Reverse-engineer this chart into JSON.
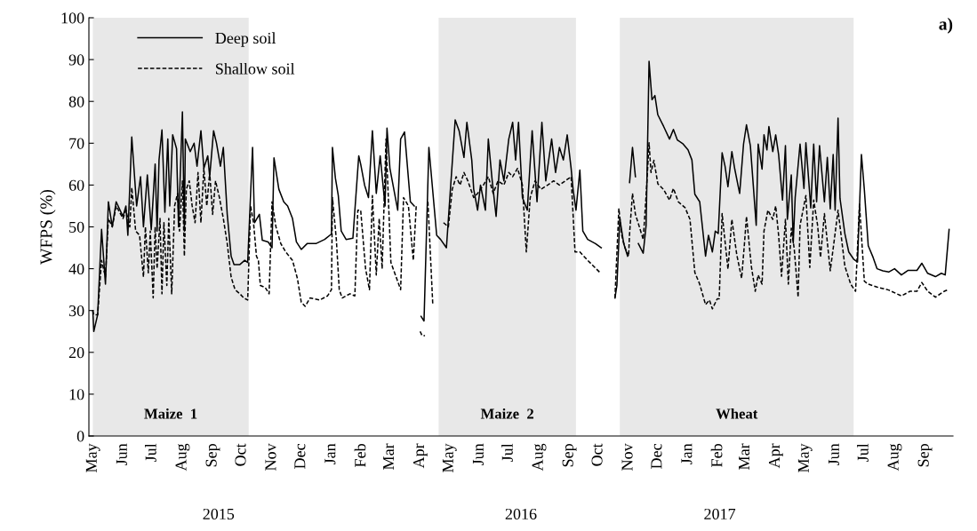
{
  "chart_data": {
    "type": "line",
    "ylabel": "WFPS (%)",
    "xlim": [
      "2015-04-27",
      "2017-09-30"
    ],
    "xticks": [
      {
        "value": "2015-05-01",
        "label": "May"
      },
      {
        "value": "2015-06-01",
        "label": "Jun"
      },
      {
        "value": "2015-07-01",
        "label": "Jul"
      },
      {
        "value": "2015-08-01",
        "label": "Aug"
      },
      {
        "value": "2015-09-01",
        "label": "Sep"
      },
      {
        "value": "2015-10-01",
        "label": "Oct"
      },
      {
        "value": "2015-11-01",
        "label": "Nov"
      },
      {
        "value": "2015-12-01",
        "label": "Dec"
      },
      {
        "value": "2016-01-01",
        "label": "Jan"
      },
      {
        "value": "2016-02-01",
        "label": "Feb"
      },
      {
        "value": "2016-03-01",
        "label": "Mar"
      },
      {
        "value": "2016-04-01",
        "label": "Apr"
      },
      {
        "value": "2016-05-01",
        "label": "May"
      },
      {
        "value": "2016-06-01",
        "label": "Jun"
      },
      {
        "value": "2016-07-01",
        "label": "Jul"
      },
      {
        "value": "2016-08-01",
        "label": "Aug"
      },
      {
        "value": "2016-09-01",
        "label": "Sep"
      },
      {
        "value": "2016-10-01",
        "label": "Oct"
      },
      {
        "value": "2016-11-01",
        "label": "Nov"
      },
      {
        "value": "2016-12-01",
        "label": "Dec"
      },
      {
        "value": "2017-01-01",
        "label": "Jan"
      },
      {
        "value": "2017-02-01",
        "label": "Feb"
      },
      {
        "value": "2017-03-01",
        "label": "Mar"
      },
      {
        "value": "2017-04-01",
        "label": "Apr"
      },
      {
        "value": "2017-05-01",
        "label": "May"
      },
      {
        "value": "2017-06-01",
        "label": "Jun"
      },
      {
        "value": "2017-07-01",
        "label": "Jul"
      },
      {
        "value": "2017-08-01",
        "label": "Aug"
      },
      {
        "value": "2017-09-01",
        "label": "Sep"
      }
    ],
    "ylim": [
      0,
      100
    ],
    "yticks": [
      0,
      10,
      20,
      30,
      40,
      50,
      60,
      70,
      80,
      90,
      100
    ],
    "grid": false,
    "legend": "top left",
    "marker": "none",
    "bands": [
      {
        "axis": "x",
        "from": "2015-05-01",
        "to": "2015-10-08",
        "label": "Maize  1",
        "color": "#e8e8e8"
      },
      {
        "axis": "x",
        "from": "2016-04-20",
        "to": "2016-09-08",
        "label": "Maize  2",
        "color": "#e8e8e8"
      },
      {
        "axis": "x",
        "from": "2016-10-23",
        "to": "2017-06-20",
        "label": "Wheat",
        "color": "#e8e8e8"
      }
    ],
    "annotations": [
      "a)",
      "2015",
      "2016",
      "2017"
    ],
    "series": [
      {
        "name": "Deep soil",
        "color": "#000000",
        "line_style": "solid",
        "x": [
          "2015-05-01",
          "2015-05-02",
          "2015-05-06",
          "2015-05-10",
          "2015-05-14",
          "2015-05-17",
          "2015-05-21",
          "2015-05-25",
          "2015-06-01",
          "2015-06-04",
          "2015-06-06",
          "2015-06-10",
          "2015-06-15",
          "2015-06-19",
          "2015-06-22",
          "2015-06-26",
          "2015-06-30",
          "2015-07-04",
          "2015-07-06",
          "2015-07-08",
          "2015-07-11",
          "2015-07-14",
          "2015-07-17",
          "2015-07-19",
          "2015-07-22",
          "2015-07-26",
          "2015-07-28",
          "2015-08-01",
          "2015-08-03",
          "2015-08-04",
          "2015-08-09",
          "2015-08-13",
          "2015-08-16",
          "2015-08-20",
          "2015-08-23",
          "2015-08-27",
          "2015-08-29",
          "2015-09-02",
          "2015-09-05",
          "2015-09-09",
          "2015-09-12",
          "2015-09-16",
          "2015-09-20",
          "2015-09-23",
          "2015-09-29",
          "2015-10-04",
          "2015-10-07",
          "2015-10-12",
          "2015-10-14",
          "2015-10-19",
          "2015-10-22",
          "2015-10-28",
          "2015-11-01",
          "2015-11-03",
          "2015-11-08",
          "2015-11-13",
          "2015-11-17",
          "2015-11-22",
          "2015-11-26",
          "2015-12-01",
          "2015-12-07",
          "2015-12-16",
          "2015-12-25",
          "2016-01-01",
          "2016-01-02",
          "2016-01-05",
          "2016-01-08",
          "2016-01-11",
          "2016-01-16",
          "2016-01-23",
          "2016-01-29",
          "2016-01-31",
          "2016-02-04",
          "2016-02-08",
          "2016-02-12",
          "2016-02-16",
          "2016-02-20",
          "2016-02-25",
          "2016-02-27",
          "2016-03-01",
          "2016-03-09",
          "2016-03-12",
          "2016-03-16",
          "2016-03-22",
          "2016-03-26",
          "2016-03-29",
          "2016-04-02",
          "2016-04-05",
          "2016-04-10",
          "2016-04-18",
          "2016-04-22",
          "2016-04-28",
          "2016-05-07",
          "2016-05-11",
          "2016-05-16",
          "2016-05-19",
          "2016-05-24",
          "2016-05-26",
          "2016-05-30",
          "2016-06-02",
          "2016-06-07",
          "2016-06-10",
          "2016-06-14",
          "2016-06-18",
          "2016-06-22",
          "2016-06-26",
          "2016-07-01",
          "2016-07-05",
          "2016-07-08",
          "2016-07-11",
          "2016-07-15",
          "2016-07-20",
          "2016-07-25",
          "2016-07-30",
          "2016-08-04",
          "2016-08-08",
          "2016-08-14",
          "2016-08-18",
          "2016-08-22",
          "2016-08-26",
          "2016-08-30",
          "2016-09-03",
          "2016-09-05",
          "2016-09-08",
          "2016-09-12",
          "2016-09-15",
          "2016-09-20",
          "2016-09-28",
          "2016-10-04",
          "2016-10-11",
          "2016-10-18",
          "2016-10-20",
          "2016-10-23",
          "2016-10-27",
          "2016-10-31",
          "2016-11-01",
          "2016-11-02",
          "2016-11-05",
          "2016-11-08",
          "2016-11-09",
          "2016-11-11",
          "2016-11-16",
          "2016-11-19",
          "2016-11-22",
          "2016-11-25",
          "2016-11-28",
          "2016-12-01",
          "2016-12-07",
          "2016-12-13",
          "2016-12-17",
          "2016-12-21",
          "2016-12-27",
          "2017-01-01",
          "2017-01-05",
          "2017-01-08",
          "2017-01-13",
          "2017-01-19",
          "2017-01-22",
          "2017-01-26",
          "2017-01-29",
          "2017-02-01",
          "2017-02-05",
          "2017-02-08",
          "2017-02-11",
          "2017-02-15",
          "2017-02-18",
          "2017-02-23",
          "2017-02-27",
          "2017-03-02",
          "2017-03-06",
          "2017-03-12",
          "2017-03-14",
          "2017-03-18",
          "2017-03-20",
          "2017-03-23",
          "2017-03-25",
          "2017-03-29",
          "2017-04-01",
          "2017-04-04",
          "2017-04-08",
          "2017-04-11",
          "2017-04-13",
          "2017-04-17",
          "2017-04-19",
          "2017-04-21",
          "2017-04-26",
          "2017-04-30",
          "2017-05-02",
          "2017-05-07",
          "2017-05-10",
          "2017-05-13",
          "2017-05-16",
          "2017-05-21",
          "2017-05-24",
          "2017-05-27",
          "2017-05-30",
          "2017-06-01",
          "2017-06-04",
          "2017-06-06",
          "2017-06-11",
          "2017-06-15",
          "2017-06-20",
          "2017-06-24",
          "2017-06-28",
          "2017-07-01",
          "2017-07-05",
          "2017-07-10",
          "2017-07-14",
          "2017-07-20",
          "2017-07-26",
          "2017-08-01",
          "2017-08-08",
          "2017-08-15",
          "2017-08-24",
          "2017-08-29",
          "2017-09-04",
          "2017-09-12",
          "2017-09-18",
          "2017-09-22",
          "2017-09-26"
        ],
        "values": [
          30,
          25,
          29,
          49.4,
          36.3,
          56,
          50,
          56,
          52.5,
          55,
          48,
          71.5,
          55,
          62,
          50,
          62.4,
          49.3,
          65,
          49,
          66,
          73.2,
          53.5,
          71,
          55,
          72,
          68.7,
          50,
          77.5,
          49,
          71,
          68,
          70,
          64.5,
          73,
          64,
          67,
          62,
          73,
          70,
          64.5,
          69,
          53,
          43,
          41,
          41,
          42,
          41.5,
          69,
          51,
          53,
          46.8,
          46.4,
          45,
          66.5,
          59,
          56,
          55,
          52,
          46.4,
          44.6,
          46,
          46,
          47,
          48.3,
          69,
          61.7,
          57.5,
          49,
          47,
          47.3,
          67,
          65,
          60,
          57,
          73,
          58,
          67,
          55,
          73.6,
          64,
          54,
          71,
          72.7,
          56,
          55,
          null,
          28.6,
          27.5,
          69,
          48,
          47,
          45,
          75.6,
          73,
          66.6,
          75,
          66,
          59,
          54,
          60,
          54,
          71,
          61,
          52.5,
          66,
          61,
          71,
          75,
          66,
          75,
          57,
          54,
          73,
          56,
          75,
          61,
          71,
          63,
          69,
          66,
          72,
          64,
          59,
          54,
          63.6,
          49,
          47,
          46,
          45,
          null,
          33,
          36,
          52,
          46,
          43,
          null,
          60.6,
          69,
          62,
          null,
          46,
          43.7,
          50.4,
          89.6,
          80.4,
          81.4,
          76.8,
          74,
          71,
          73.3,
          70.8,
          69.8,
          68.4,
          66,
          57.8,
          56,
          43,
          48,
          44,
          49,
          48.4,
          67.7,
          64.5,
          59.6,
          68,
          63.8,
          58,
          69.8,
          74.4,
          69.4,
          50.4,
          69.8,
          63.8,
          72,
          68.4,
          74,
          68,
          72,
          67.3,
          56.4,
          69.4,
          51.8,
          62.4,
          46.2,
          57,
          69.8,
          59.2,
          70.1,
          54.5,
          69.8,
          56,
          69.4,
          56,
          66.6,
          54.3,
          67.3,
          54,
          76,
          56.8,
          48.4,
          44,
          42.3,
          41.6,
          67.3,
          58.9,
          45.5,
          42.7,
          40,
          39.5,
          39.2,
          40,
          38.5,
          39.6,
          39.6,
          41.3,
          38.9,
          38.1,
          38.9,
          38.5,
          49.4
        ]
      },
      {
        "name": "Shallow soil",
        "color": "#000000",
        "line_style": "dashed",
        "x": [
          "2015-05-01",
          "2015-05-02",
          "2015-05-06",
          "2015-05-10",
          "2015-05-14",
          "2015-05-17",
          "2015-05-21",
          "2015-05-25",
          "2015-06-01",
          "2015-06-04",
          "2015-06-08",
          "2015-06-10",
          "2015-06-14",
          "2015-06-18",
          "2015-06-22",
          "2015-06-24",
          "2015-06-27",
          "2015-06-29",
          "2015-07-02",
          "2015-07-04",
          "2015-07-06",
          "2015-07-09",
          "2015-07-11",
          "2015-07-13",
          "2015-07-16",
          "2015-07-18",
          "2015-07-21",
          "2015-07-24",
          "2015-07-27",
          "2015-07-29",
          "2015-08-01",
          "2015-08-03",
          "2015-08-05",
          "2015-08-08",
          "2015-08-11",
          "2015-08-14",
          "2015-08-17",
          "2015-08-20",
          "2015-08-23",
          "2015-08-26",
          "2015-08-29",
          "2015-09-01",
          "2015-09-04",
          "2015-09-08",
          "2015-09-12",
          "2015-09-16",
          "2015-09-20",
          "2015-09-24",
          "2015-09-29",
          "2015-10-03",
          "2015-10-07",
          "2015-10-10",
          "2015-10-13",
          "2015-10-16",
          "2015-10-18",
          "2015-10-20",
          "2015-10-25",
          "2015-10-29",
          "2015-11-01",
          "2015-11-05",
          "2015-11-10",
          "2015-11-15",
          "2015-11-22",
          "2015-11-27",
          "2015-12-01",
          "2015-12-05",
          "2015-12-10",
          "2015-12-20",
          "2015-12-28",
          "2016-01-01",
          "2016-01-02",
          "2016-01-06",
          "2016-01-09",
          "2016-01-12",
          "2016-01-16",
          "2016-01-20",
          "2016-01-25",
          "2016-01-28",
          "2016-01-31",
          "2016-02-05",
          "2016-02-09",
          "2016-02-12",
          "2016-02-16",
          "2016-02-19",
          "2016-02-22",
          "2016-02-26",
          "2016-03-02",
          "2016-03-12",
          "2016-03-15",
          "2016-03-20",
          "2016-03-25",
          "2016-03-28",
          "2016-03-30",
          "2016-04-01",
          "2016-04-03",
          "2016-04-06",
          "2016-04-07",
          "2016-04-09",
          "2016-04-14",
          "2016-04-20",
          "2016-04-25",
          "2016-04-30",
          "2016-05-04",
          "2016-05-08",
          "2016-05-12",
          "2016-05-16",
          "2016-05-20",
          "2016-05-26",
          "2016-05-30",
          "2016-06-05",
          "2016-06-10",
          "2016-06-15",
          "2016-06-20",
          "2016-06-26",
          "2016-07-01",
          "2016-07-05",
          "2016-07-10",
          "2016-07-15",
          "2016-07-19",
          "2016-07-23",
          "2016-07-28",
          "2016-08-03",
          "2016-08-10",
          "2016-08-16",
          "2016-08-22",
          "2016-08-28",
          "2016-09-03",
          "2016-09-07",
          "2016-09-12",
          "2016-09-20",
          "2016-10-03",
          "2016-10-10",
          "2016-10-18",
          "2016-10-22",
          "2016-10-25",
          "2016-10-28",
          "2016-11-01",
          "2016-11-02",
          "2016-11-05",
          "2016-11-08",
          "2016-11-11",
          "2016-11-16",
          "2016-11-19",
          "2016-11-22",
          "2016-11-24",
          "2016-11-27",
          "2016-12-01",
          "2016-12-07",
          "2016-12-13",
          "2016-12-17",
          "2016-12-22",
          "2016-12-29",
          "2017-01-03",
          "2017-01-08",
          "2017-01-13",
          "2017-01-19",
          "2017-01-23",
          "2017-01-26",
          "2017-01-31",
          "2017-02-02",
          "2017-02-05",
          "2017-02-11",
          "2017-02-15",
          "2017-02-20",
          "2017-02-25",
          "2017-02-28",
          "2017-03-02",
          "2017-03-07",
          "2017-03-11",
          "2017-03-14",
          "2017-03-18",
          "2017-03-20",
          "2017-03-24",
          "2017-03-29",
          "2017-04-01",
          "2017-04-04",
          "2017-04-07",
          "2017-04-11",
          "2017-04-14",
          "2017-04-17",
          "2017-04-20",
          "2017-04-24",
          "2017-04-26",
          "2017-05-02",
          "2017-05-06",
          "2017-05-10",
          "2017-05-14",
          "2017-05-17",
          "2017-05-21",
          "2017-05-27",
          "2017-05-30",
          "2017-06-04",
          "2017-06-11",
          "2017-06-17",
          "2017-06-22",
          "2017-06-26",
          "2017-07-01",
          "2017-07-05",
          "2017-07-14",
          "2017-07-26",
          "2017-08-08",
          "2017-08-17",
          "2017-08-24",
          "2017-08-29",
          "2017-09-04",
          "2017-09-12",
          "2017-09-21",
          "2017-09-25"
        ],
        "values": [
          30,
          29,
          29,
          42,
          38,
          52,
          50,
          55,
          52,
          54,
          50,
          59.4,
          49,
          48,
          38,
          50,
          39,
          49,
          33,
          50,
          40,
          52,
          34,
          51,
          36,
          52,
          34,
          55,
          58,
          49,
          61,
          43,
          59,
          61,
          55,
          51,
          63,
          51,
          64,
          55,
          63,
          53,
          61,
          57,
          52,
          46,
          38,
          35,
          34,
          33,
          32.5,
          55,
          51,
          43,
          42,
          36,
          35.5,
          34,
          56,
          50,
          46,
          44,
          42,
          37.7,
          32,
          31,
          33,
          32.5,
          33.5,
          35,
          57,
          47,
          35,
          33,
          33.5,
          34,
          33.5,
          54,
          54,
          40,
          35,
          57.5,
          38.5,
          52,
          40,
          71,
          41.5,
          35,
          57,
          55,
          42,
          55,
          null,
          25,
          24,
          24,
          null,
          56,
          31.4,
          null,
          51,
          50,
          59,
          62,
          60,
          63,
          61,
          57,
          58,
          60,
          62,
          58,
          61,
          60,
          63,
          62,
          64,
          60,
          44,
          57,
          61,
          59,
          60,
          61,
          60,
          61,
          62,
          44,
          44,
          42,
          39,
          null,
          33,
          54.4,
          48,
          45.2,
          43,
          48.4,
          58,
          53,
          50.8,
          47,
          57.5,
          70.1,
          63,
          65.9,
          60.3,
          58.9,
          56.4,
          59.2,
          56,
          54.6,
          51.8,
          39.1,
          36.3,
          31.4,
          32.5,
          30.4,
          32.8,
          32.8,
          53.2,
          39.9,
          51.8,
          43.4,
          37.7,
          46.2,
          52.5,
          40.6,
          34.6,
          38.5,
          36.3,
          49,
          54,
          51.8,
          55,
          48,
          38.2,
          51.8,
          36.3,
          49.7,
          44.8,
          33.2,
          50.4,
          57.5,
          40.3,
          56.4,
          50.4,
          42.7,
          53.2,
          39.5,
          44.8,
          54,
          40.6,
          36.3,
          34.6,
          55.4,
          37,
          36.3,
          35.6,
          34.9,
          33.5,
          34.6,
          34.6,
          36.7,
          34.6,
          33.2,
          34.6,
          35
        ]
      }
    ]
  }
}
